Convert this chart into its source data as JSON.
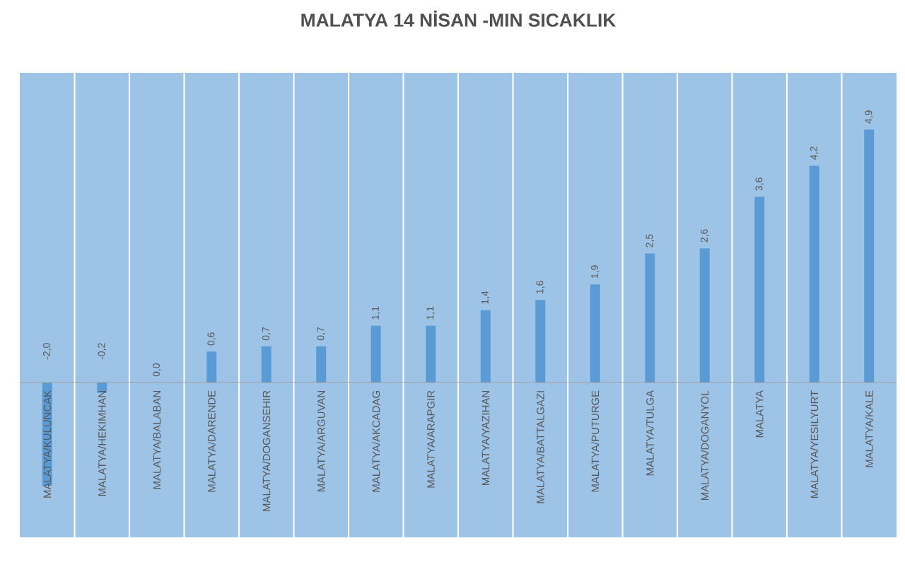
{
  "chart_data": {
    "type": "bar",
    "title": "MALATYA  14 NİSAN -MIN SICAKLIK",
    "categories": [
      "MALATYA/KULUNCAK",
      "MALATYA/HEKIMHAN",
      "MALATYA/BALABAN",
      "MALATYA/DARENDE",
      "MALATYA/DOGANSEHIR",
      "MALATYA/ARGUVAN",
      "MALATYA/AKCADAG",
      "MALATYA/ARAPGIR",
      "MALATYA/YAZIHAN",
      "MALATYA/BATTALGAZI",
      "MALATYA/PUTURGE",
      "MALATYA/TULGA",
      "MALATYA/DOGANYOL",
      "MALATYA",
      "MALATYA/YESILYURT",
      "MALATYA/KALE"
    ],
    "values": [
      -2.0,
      -0.2,
      0.0,
      0.6,
      0.7,
      0.7,
      1.1,
      1.1,
      1.4,
      1.6,
      1.9,
      2.5,
      2.6,
      3.6,
      4.2,
      4.9
    ],
    "value_labels": [
      "-2,0",
      "-0,2",
      "0,0",
      "0,6",
      "0,7",
      "0,7",
      "1,1",
      "1,1",
      "1,4",
      "1,6",
      "1,9",
      "2,5",
      "2,6",
      "3,6",
      "4,2",
      "4,9"
    ],
    "color": "#5b9bd5",
    "ylim": [
      -3,
      6
    ],
    "grid": "x"
  }
}
